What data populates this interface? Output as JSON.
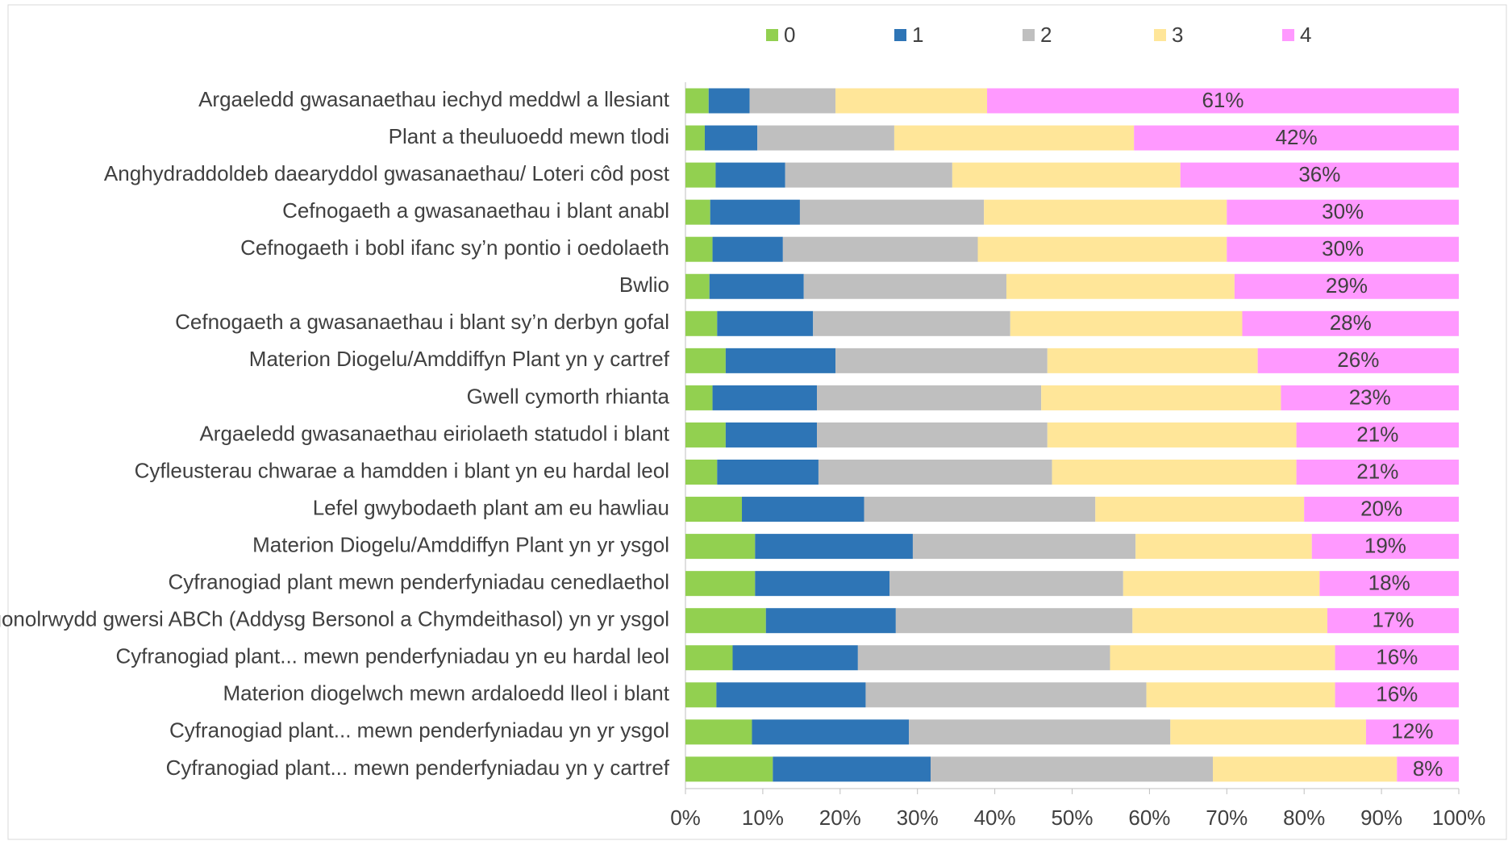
{
  "chart_data": {
    "type": "stacked-bar-horizontal",
    "categories": [
      "Argaeledd gwasanaethau iechyd meddwl a llesiant",
      "Plant a theuluoedd mewn tlodi",
      "Anghydraddoldeb daearyddol gwasanaethau/ Loteri côd post",
      "Cefnogaeth a gwasanaethau i blant anabl",
      "Cefnogaeth i bobl ifanc sy’n pontio i oedolaeth",
      "Bwlio",
      "Cefnogaeth a gwasanaethau i blant sy’n derbyn gofal",
      "Materion Diogelu/Amddiffyn Plant yn y cartref",
      "Gwell cymorth rhianta",
      "Argaeledd gwasanaethau eiriolaeth statudol i blant",
      "Cyfleusterau chwarae a hamdden i blant yn eu hardal leol",
      "Lefel gwybodaeth plant am eu hawliau",
      "Materion Diogelu/Amddiffyn Plant yn yr ysgol",
      "Cyfranogiad plant mewn penderfyniadau cenedlaethol",
      "Digonolrwydd gwersi ABCh (Addysg Bersonol a Chymdeithasol) yn yr ysgol",
      "Cyfranogiad plant... mewn penderfyniadau yn eu hardal leol",
      "Materion diogelwch mewn ardaloedd lleol i blant",
      "Cyfranogiad plant... mewn penderfyniadau yn yr ysgol",
      "Cyfranogiad plant... mewn penderfyniadau yn y cartref"
    ],
    "series": [
      {
        "name": "0",
        "color": "#92d050",
        "values": [
          3,
          2.5,
          3.9,
          3.2,
          3.5,
          3.1,
          4.1,
          5.2,
          3.5,
          5.2,
          4.1,
          7.3,
          9,
          9,
          10.4,
          6.1,
          4,
          8.6,
          11.3
        ]
      },
      {
        "name": "1",
        "color": "#2e75b6",
        "values": [
          5.3,
          6.8,
          9,
          11.6,
          9.1,
          12.2,
          12.4,
          14.2,
          13.5,
          11.8,
          13.1,
          15.8,
          20.4,
          17.4,
          16.8,
          16.2,
          19.3,
          20.3,
          20.4
        ]
      },
      {
        "name": "2",
        "color": "#bfbfbf",
        "values": [
          11.1,
          17.7,
          21.6,
          23.8,
          25.2,
          26.2,
          25.5,
          27.4,
          29,
          29.8,
          30.2,
          29.9,
          28.8,
          30.2,
          30.6,
          32.6,
          36.3,
          33.8,
          36.5
        ]
      },
      {
        "name": "3",
        "color": "#ffe699",
        "values": [
          19.6,
          31,
          29.5,
          31.4,
          32.2,
          29.5,
          30,
          27.2,
          31,
          32.2,
          31.6,
          27,
          22.8,
          25.4,
          25.2,
          29.1,
          24.4,
          25.3,
          23.8
        ]
      },
      {
        "name": "4",
        "color": "#ff99ff",
        "values": [
          61,
          42,
          36,
          30,
          30,
          29,
          28,
          26,
          23,
          21,
          21,
          20,
          19,
          18,
          17,
          16,
          16,
          12,
          8
        ],
        "value_labels": [
          "61%",
          "42%",
          "36%",
          "30%",
          "30%",
          "29%",
          "28%",
          "26%",
          "23%",
          "21%",
          "21%",
          "20%",
          "19%",
          "18%",
          "17%",
          "16%",
          "16%",
          "12%",
          "8%"
        ]
      }
    ],
    "xlim": [
      0,
      100
    ],
    "xticks": [
      {
        "value": 0,
        "label": "0%"
      },
      {
        "value": 10,
        "label": "10%"
      },
      {
        "value": 20,
        "label": "20%"
      },
      {
        "value": 30,
        "label": "30%"
      },
      {
        "value": 40,
        "label": "40%"
      },
      {
        "value": 50,
        "label": "50%"
      },
      {
        "value": 60,
        "label": "60%"
      },
      {
        "value": 70,
        "label": "70%"
      },
      {
        "value": 80,
        "label": "80%"
      },
      {
        "value": 90,
        "label": "90%"
      },
      {
        "value": 100,
        "label": "100%"
      }
    ],
    "legend": "top",
    "grid": false
  }
}
